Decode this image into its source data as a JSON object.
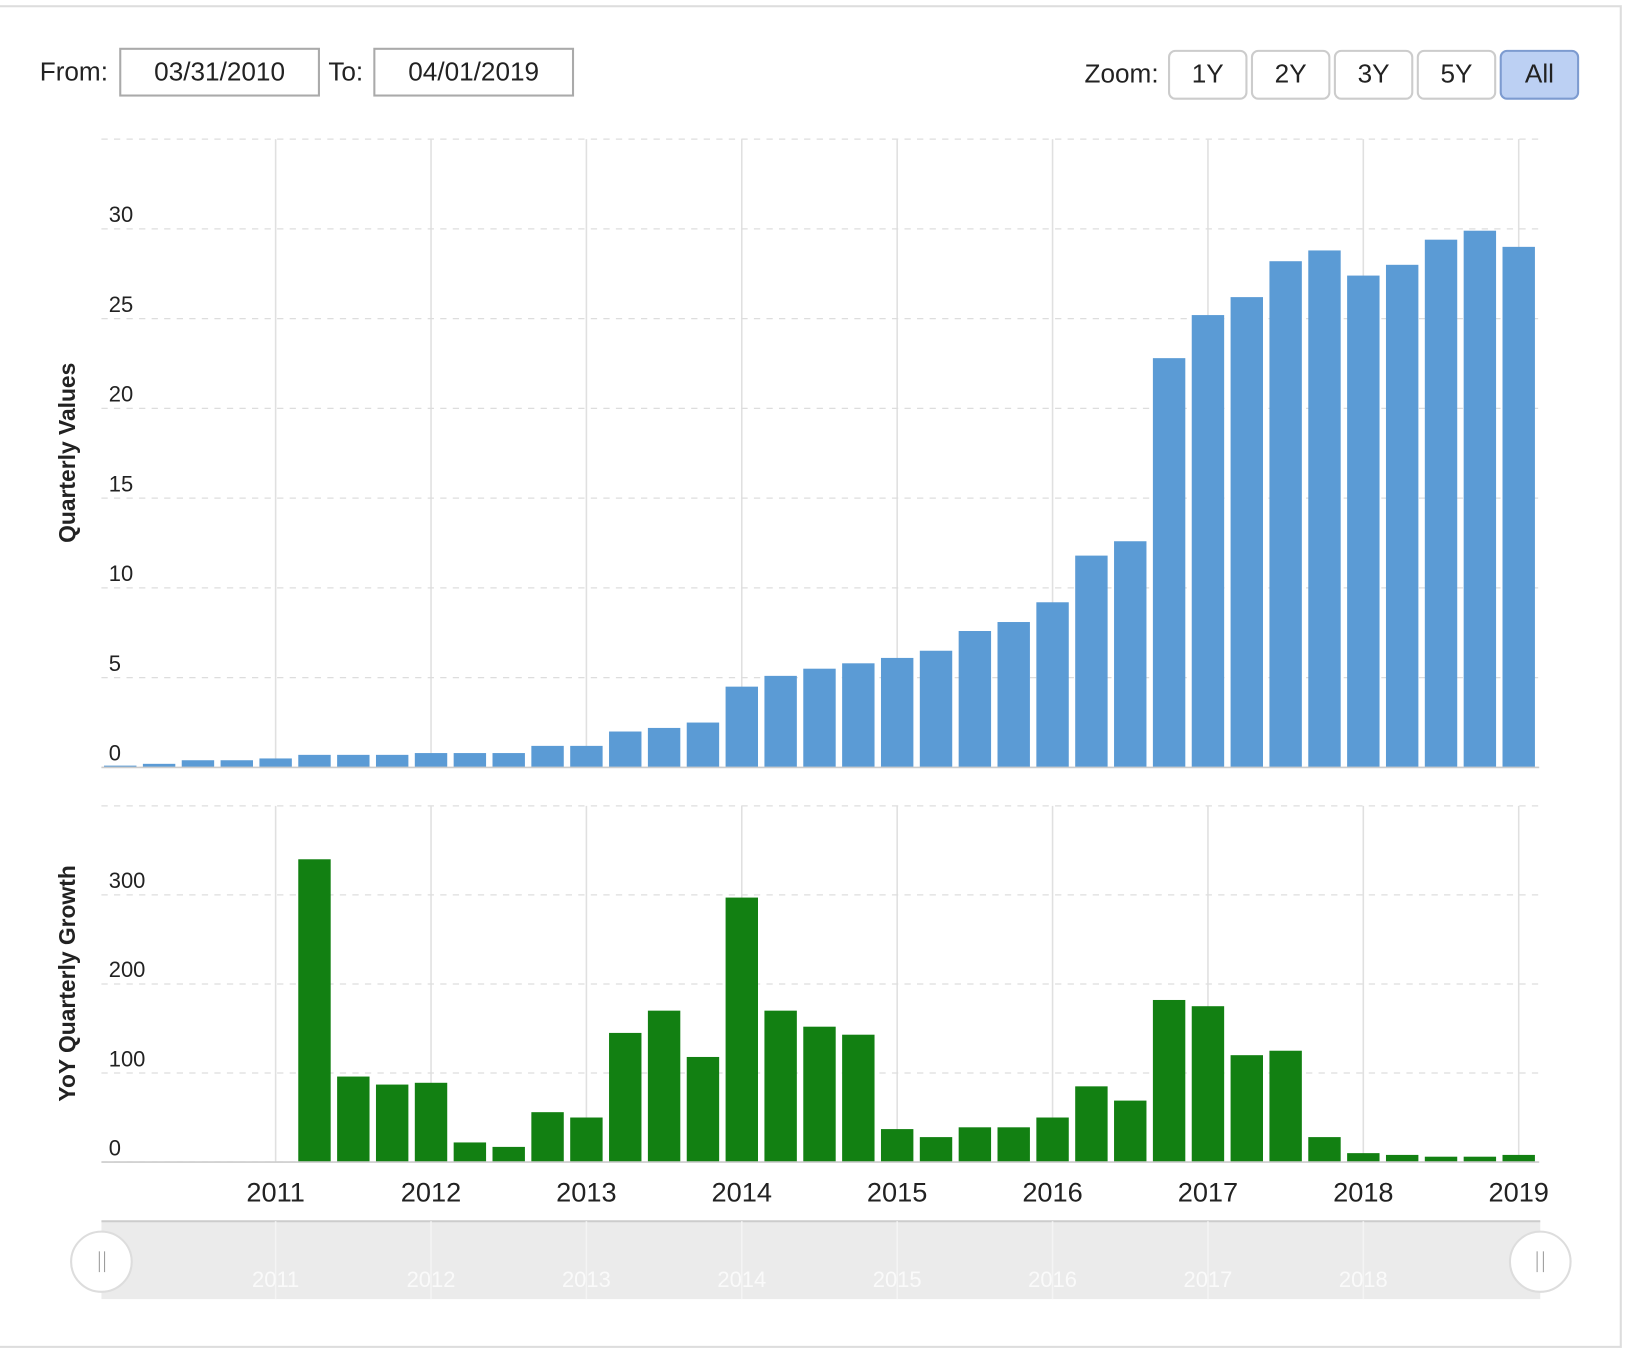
{
  "controls": {
    "from_label": "From:",
    "from": "03/31/2010",
    "to_label": "To:",
    "to": "04/01/2019",
    "zoom_label": "Zoom:",
    "zoom_buttons": [
      "1Y",
      "2Y",
      "3Y",
      "5Y",
      "All"
    ],
    "active_zoom": "All"
  },
  "chart_data": [
    {
      "type": "bar",
      "y_label": "Quarterly Values",
      "color": "#5b9bd5",
      "grid": true,
      "categories": [
        null,
        null,
        null,
        null,
        "2011",
        null,
        null,
        null,
        "2012",
        null,
        null,
        null,
        "2013",
        null,
        null,
        null,
        "2014",
        null,
        null,
        null,
        "2015",
        null,
        null,
        null,
        "2016",
        null,
        null,
        null,
        "2017",
        null,
        null,
        null,
        "2018",
        null,
        null,
        null,
        "2019"
      ],
      "values": [
        0.1,
        0.2,
        0.4,
        0.4,
        0.5,
        0.7,
        0.7,
        0.7,
        0.8,
        0.8,
        0.8,
        1.2,
        1.2,
        2.0,
        2.2,
        2.5,
        4.5,
        5.1,
        5.5,
        5.8,
        6.1,
        6.5,
        7.6,
        8.1,
        9.2,
        11.8,
        12.6,
        22.8,
        25.2,
        26.2,
        28.2,
        28.8,
        27.4,
        28.0,
        29.4,
        29.9,
        29.0
      ],
      "ylim": [
        0,
        35
      ],
      "yticks": [
        0,
        5,
        10,
        15,
        20,
        25,
        30
      ]
    },
    {
      "type": "bar",
      "y_label": "YoY Quarterly Growth",
      "color": "#128012",
      "grid": true,
      "categories": [
        null,
        null,
        null,
        null,
        "2011",
        null,
        null,
        null,
        "2012",
        null,
        null,
        null,
        "2013",
        null,
        null,
        null,
        "2014",
        null,
        null,
        null,
        "2015",
        null,
        null,
        null,
        "2016",
        null,
        null,
        null,
        "2017",
        null,
        null,
        null,
        "2018",
        null,
        null,
        null,
        "2019"
      ],
      "values": [
        null,
        null,
        null,
        null,
        null,
        340,
        96,
        87,
        89,
        22,
        17,
        56,
        50,
        145,
        170,
        118,
        297,
        170,
        152,
        143,
        37,
        28,
        39,
        39,
        50,
        85,
        69,
        182,
        175,
        120,
        125,
        28,
        10,
        8,
        6,
        6,
        8
      ],
      "ylim": [
        0,
        400
      ],
      "yticks": [
        0,
        100,
        200,
        300
      ]
    }
  ]
}
